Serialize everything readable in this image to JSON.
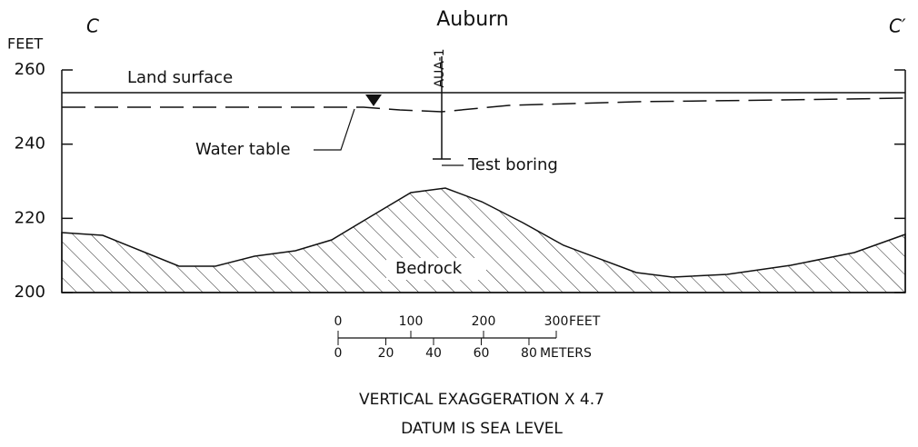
{
  "section": {
    "start_label": "C",
    "end_label": "C′",
    "title": "Auburn"
  },
  "axis": {
    "unit": "FEET",
    "ticks": [
      260,
      240,
      220,
      200
    ]
  },
  "labels": {
    "land_surface": "Land surface",
    "water_table": "Water table",
    "test_boring": "Test boring",
    "well_id": "AUA-1",
    "bedrock": "Bedrock"
  },
  "scale_bar": {
    "feet": [
      0,
      100,
      200,
      300
    ],
    "feet_unit": "FEET",
    "meters": [
      0,
      20,
      40,
      60,
      80
    ],
    "meters_unit": "METERS"
  },
  "notes": [
    "VERTICAL EXAGGERATION X 4.7",
    "DATUM IS SEA LEVEL"
  ]
}
